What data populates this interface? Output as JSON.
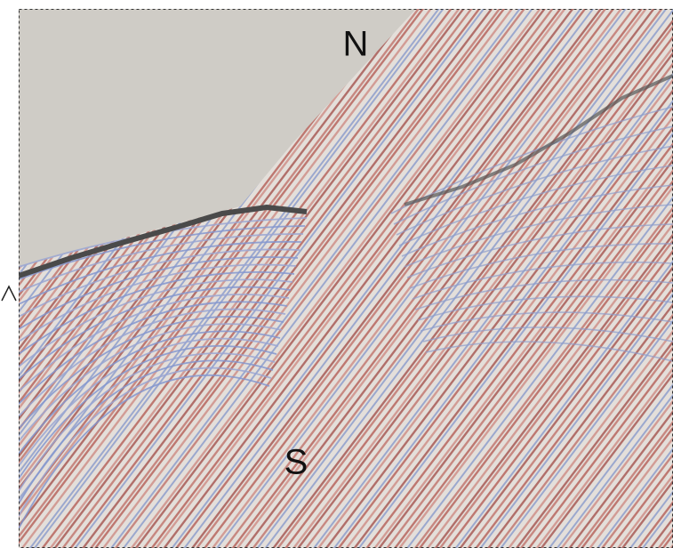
{
  "labels": {
    "north": "N",
    "south": "S"
  }
}
